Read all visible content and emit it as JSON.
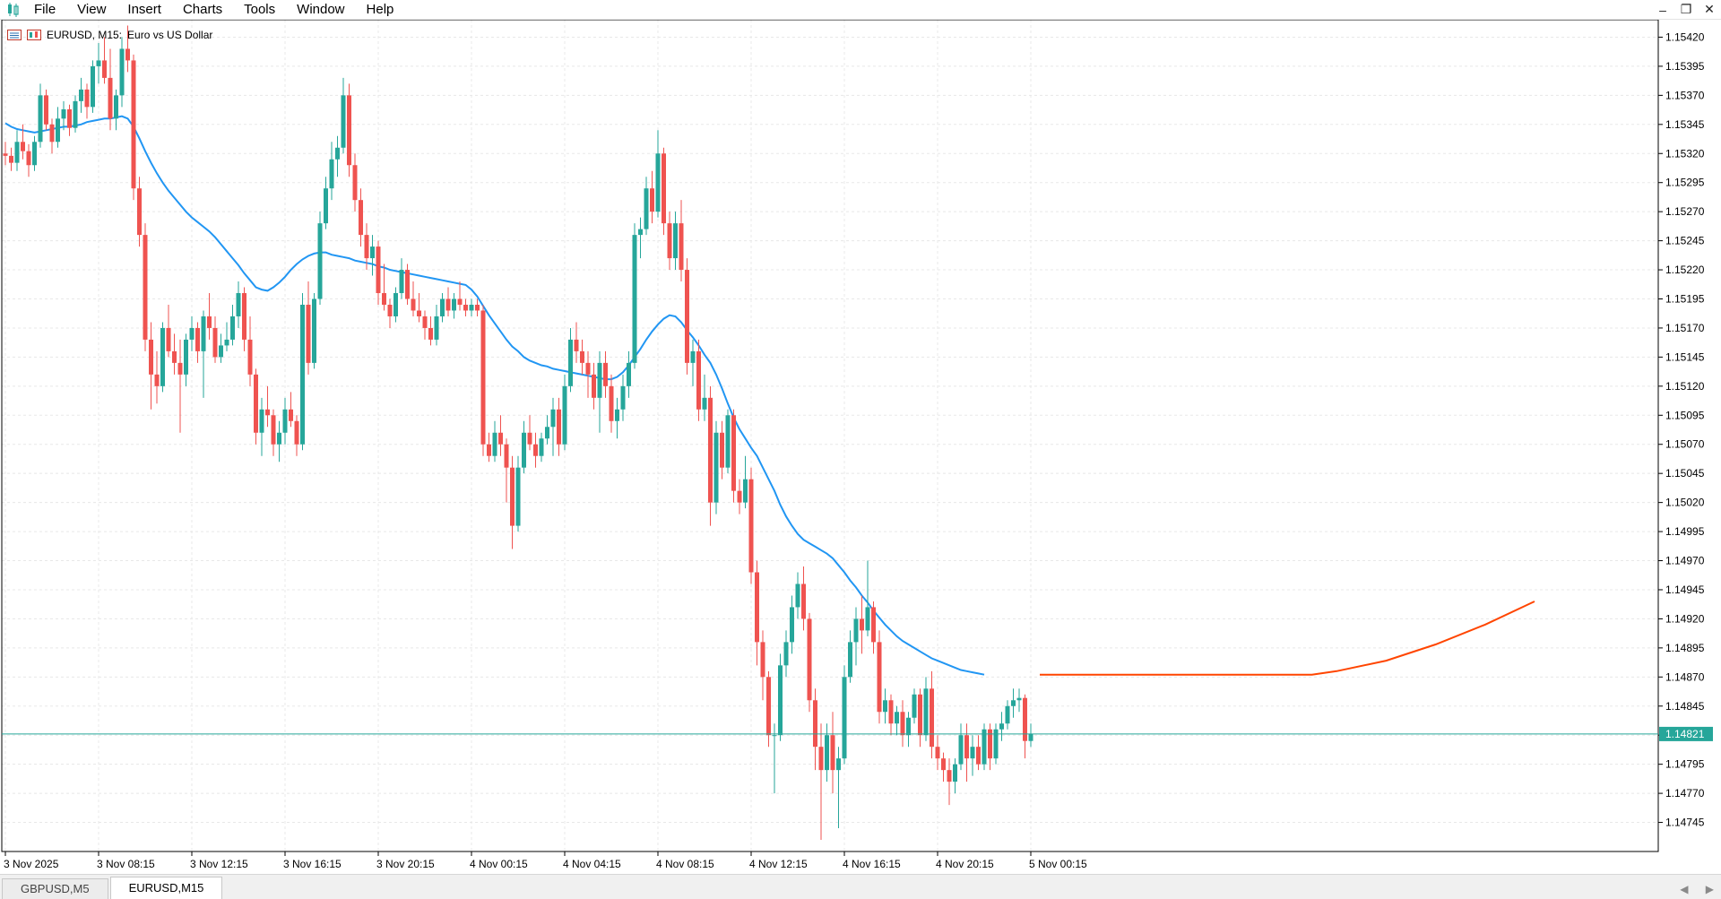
{
  "menu": [
    "File",
    "View",
    "Insert",
    "Charts",
    "Tools",
    "Window",
    "Help"
  ],
  "window_controls": [
    "minimize-icon",
    "restore-icon",
    "close-icon"
  ],
  "chart": {
    "symbol_label": "EURUSD, M15:",
    "description": "Euro vs US Dollar",
    "current_price_label": "1.14821"
  },
  "tabs": [
    {
      "label": "GBPUSD,M5",
      "active": false
    },
    {
      "label": "EURUSD,M15",
      "active": true
    }
  ],
  "colors": {
    "bull": "#26a69a",
    "bear": "#ef5350",
    "ma": "#2196f3",
    "forecast": "#ff4500",
    "price_line": "#26a69a",
    "grid": "#e8e8e8"
  },
  "chart_data": {
    "type": "candlestick",
    "symbol": "EURUSD",
    "timeframe": "M15",
    "ylim": [
      1.1472,
      1.15435
    ],
    "y_ticks": [
      "1.15420",
      "1.15395",
      "1.15370",
      "1.15345",
      "1.15320",
      "1.15295",
      "1.15270",
      "1.15245",
      "1.15220",
      "1.15195",
      "1.15170",
      "1.15145",
      "1.15120",
      "1.15095",
      "1.15070",
      "1.15045",
      "1.15020",
      "1.14995",
      "1.14970",
      "1.14945",
      "1.14920",
      "1.14895",
      "1.14870",
      "1.14845",
      "1.14820",
      "1.14795",
      "1.14770",
      "1.14745"
    ],
    "x_ticks": [
      "3 Nov 2025",
      "3 Nov 08:15",
      "3 Nov 12:15",
      "3 Nov 16:15",
      "3 Nov 20:15",
      "4 Nov 00:15",
      "4 Nov 04:15",
      "4 Nov 08:15",
      "4 Nov 12:15",
      "4 Nov 16:15",
      "4 Nov 20:15",
      "5 Nov 00:15"
    ],
    "current_price": 1.14821,
    "candles": [
      [
        1.1532,
        1.1533,
        1.1531,
        1.15318
      ],
      [
        1.15318,
        1.15325,
        1.15305,
        1.15312
      ],
      [
        1.15312,
        1.1534,
        1.15305,
        1.1533
      ],
      [
        1.1533,
        1.15345,
        1.15315,
        1.15322
      ],
      [
        1.15322,
        1.15328,
        1.153,
        1.1531
      ],
      [
        1.1531,
        1.15335,
        1.15305,
        1.1533
      ],
      [
        1.1533,
        1.1538,
        1.15325,
        1.1537
      ],
      [
        1.1537,
        1.15375,
        1.1534,
        1.15345
      ],
      [
        1.15345,
        1.1535,
        1.1532,
        1.1533
      ],
      [
        1.1533,
        1.1536,
        1.15325,
        1.1535
      ],
      [
        1.1535,
        1.15365,
        1.1534,
        1.15358
      ],
      [
        1.15358,
        1.15362,
        1.15335,
        1.15342
      ],
      [
        1.15342,
        1.1537,
        1.15338,
        1.15365
      ],
      [
        1.15365,
        1.15385,
        1.15355,
        1.15375
      ],
      [
        1.15375,
        1.1538,
        1.1535,
        1.1536
      ],
      [
        1.1536,
        1.154,
        1.15355,
        1.15395
      ],
      [
        1.15395,
        1.15415,
        1.1538,
        1.154
      ],
      [
        1.154,
        1.1542,
        1.1538,
        1.15385
      ],
      [
        1.15385,
        1.1541,
        1.1534,
        1.1535
      ],
      [
        1.1535,
        1.15375,
        1.1534,
        1.1537
      ],
      [
        1.1537,
        1.1542,
        1.1536,
        1.1541
      ],
      [
        1.1541,
        1.1543,
        1.1539,
        1.154
      ],
      [
        1.154,
        1.15405,
        1.1528,
        1.1529
      ],
      [
        1.1529,
        1.153,
        1.1524,
        1.1525
      ],
      [
        1.1525,
        1.1526,
        1.1515,
        1.1516
      ],
      [
        1.1516,
        1.15175,
        1.151,
        1.1513
      ],
      [
        1.1513,
        1.1515,
        1.15105,
        1.1512
      ],
      [
        1.1512,
        1.15175,
        1.15115,
        1.1517
      ],
      [
        1.1517,
        1.1519,
        1.15145,
        1.1515
      ],
      [
        1.1515,
        1.15165,
        1.1513,
        1.1514
      ],
      [
        1.1514,
        1.1516,
        1.1508,
        1.1513
      ],
      [
        1.1513,
        1.15165,
        1.1512,
        1.1516
      ],
      [
        1.1516,
        1.1518,
        1.1515,
        1.1517
      ],
      [
        1.1517,
        1.15175,
        1.1514,
        1.1515
      ],
      [
        1.1515,
        1.15185,
        1.1511,
        1.1518
      ],
      [
        1.1518,
        1.152,
        1.1516,
        1.1517
      ],
      [
        1.1517,
        1.1518,
        1.1514,
        1.15145
      ],
      [
        1.15145,
        1.15165,
        1.1514,
        1.15155
      ],
      [
        1.15155,
        1.15175,
        1.1515,
        1.1516
      ],
      [
        1.1516,
        1.1519,
        1.15155,
        1.1518
      ],
      [
        1.1518,
        1.1521,
        1.1517,
        1.152
      ],
      [
        1.152,
        1.15205,
        1.1515,
        1.1516
      ],
      [
        1.1516,
        1.1518,
        1.1512,
        1.1513
      ],
      [
        1.1513,
        1.15135,
        1.1507,
        1.1508
      ],
      [
        1.1508,
        1.1511,
        1.1506,
        1.151
      ],
      [
        1.151,
        1.1512,
        1.15085,
        1.15095
      ],
      [
        1.15095,
        1.151,
        1.1506,
        1.1507
      ],
      [
        1.1507,
        1.1509,
        1.15055,
        1.1508
      ],
      [
        1.1508,
        1.1511,
        1.1507,
        1.151
      ],
      [
        1.151,
        1.15115,
        1.15085,
        1.1509
      ],
      [
        1.1509,
        1.15095,
        1.1506,
        1.1507
      ],
      [
        1.1507,
        1.152,
        1.15065,
        1.1519
      ],
      [
        1.1519,
        1.1521,
        1.1513,
        1.1514
      ],
      [
        1.1514,
        1.152,
        1.15135,
        1.15195
      ],
      [
        1.15195,
        1.1527,
        1.1519,
        1.1526
      ],
      [
        1.1526,
        1.153,
        1.15255,
        1.1529
      ],
      [
        1.1529,
        1.1533,
        1.1528,
        1.15315
      ],
      [
        1.15315,
        1.15335,
        1.153,
        1.15325
      ],
      [
        1.15325,
        1.15385,
        1.1532,
        1.1537
      ],
      [
        1.1537,
        1.1538,
        1.153,
        1.1531
      ],
      [
        1.1531,
        1.1532,
        1.1527,
        1.1528
      ],
      [
        1.1528,
        1.1529,
        1.1524,
        1.1525
      ],
      [
        1.1525,
        1.1526,
        1.1522,
        1.1523
      ],
      [
        1.1523,
        1.1525,
        1.15215,
        1.1524
      ],
      [
        1.1524,
        1.15245,
        1.1519,
        1.152
      ],
      [
        1.152,
        1.15225,
        1.15185,
        1.1519
      ],
      [
        1.1519,
        1.15195,
        1.1517,
        1.1518
      ],
      [
        1.1518,
        1.15205,
        1.15175,
        1.152
      ],
      [
        1.152,
        1.1523,
        1.15195,
        1.1522
      ],
      [
        1.1522,
        1.15225,
        1.1519,
        1.15195
      ],
      [
        1.15195,
        1.1521,
        1.1518,
        1.15185
      ],
      [
        1.15185,
        1.152,
        1.15175,
        1.1518
      ],
      [
        1.1518,
        1.15185,
        1.1516,
        1.1517
      ],
      [
        1.1517,
        1.1518,
        1.15155,
        1.1516
      ],
      [
        1.1516,
        1.1519,
        1.15155,
        1.1518
      ],
      [
        1.1518,
        1.152,
        1.15175,
        1.15195
      ],
      [
        1.15195,
        1.15205,
        1.1518,
        1.15185
      ],
      [
        1.15185,
        1.152,
        1.15178,
        1.15195
      ],
      [
        1.15195,
        1.1521,
        1.15185,
        1.1519
      ],
      [
        1.1519,
        1.15195,
        1.1518,
        1.15185
      ],
      [
        1.15185,
        1.15195,
        1.1518,
        1.1519
      ],
      [
        1.1519,
        1.15195,
        1.1518,
        1.15185
      ],
      [
        1.15185,
        1.1519,
        1.1506,
        1.1507
      ],
      [
        1.1507,
        1.1508,
        1.15055,
        1.1506
      ],
      [
        1.1506,
        1.1509,
        1.15055,
        1.1508
      ],
      [
        1.1508,
        1.15095,
        1.1506,
        1.1507
      ],
      [
        1.1507,
        1.15075,
        1.1502,
        1.1505
      ],
      [
        1.1505,
        1.1506,
        1.1498,
        1.15
      ],
      [
        1.15,
        1.1506,
        1.14995,
        1.1505
      ],
      [
        1.1505,
        1.1509,
        1.15045,
        1.1508
      ],
      [
        1.1508,
        1.15095,
        1.15065,
        1.1507
      ],
      [
        1.1507,
        1.1508,
        1.1505,
        1.1506
      ],
      [
        1.1506,
        1.1508,
        1.15055,
        1.15075
      ],
      [
        1.15075,
        1.15095,
        1.1507,
        1.15085
      ],
      [
        1.15085,
        1.1511,
        1.1506,
        1.151
      ],
      [
        1.151,
        1.1511,
        1.1506,
        1.1507
      ],
      [
        1.1507,
        1.1513,
        1.15065,
        1.1512
      ],
      [
        1.1512,
        1.1517,
        1.15115,
        1.1516
      ],
      [
        1.1516,
        1.15175,
        1.1514,
        1.1515
      ],
      [
        1.1515,
        1.1516,
        1.1513,
        1.1514
      ],
      [
        1.1514,
        1.1515,
        1.1511,
        1.1513
      ],
      [
        1.1513,
        1.1514,
        1.151,
        1.1511
      ],
      [
        1.1511,
        1.1515,
        1.1508,
        1.1514
      ],
      [
        1.1514,
        1.1515,
        1.1511,
        1.1512
      ],
      [
        1.1512,
        1.1513,
        1.1508,
        1.1509
      ],
      [
        1.1509,
        1.1511,
        1.15075,
        1.151
      ],
      [
        1.151,
        1.1513,
        1.1509,
        1.1512
      ],
      [
        1.1512,
        1.1515,
        1.1511,
        1.1514
      ],
      [
        1.1514,
        1.1526,
        1.15135,
        1.1525
      ],
      [
        1.1525,
        1.15265,
        1.1523,
        1.15255
      ],
      [
        1.15255,
        1.153,
        1.1525,
        1.1529
      ],
      [
        1.1529,
        1.15305,
        1.1526,
        1.1527
      ],
      [
        1.1527,
        1.1534,
        1.15265,
        1.1532
      ],
      [
        1.1532,
        1.15325,
        1.1525,
        1.1526
      ],
      [
        1.1526,
        1.1527,
        1.1522,
        1.1523
      ],
      [
        1.1523,
        1.1527,
        1.1522,
        1.1526
      ],
      [
        1.1526,
        1.1528,
        1.1521,
        1.1522
      ],
      [
        1.1522,
        1.1523,
        1.1513,
        1.1514
      ],
      [
        1.1514,
        1.1516,
        1.1512,
        1.1515
      ],
      [
        1.1515,
        1.1516,
        1.1509,
        1.151
      ],
      [
        1.151,
        1.1513,
        1.1509,
        1.1511
      ],
      [
        1.1511,
        1.1512,
        1.15,
        1.1502
      ],
      [
        1.1502,
        1.1509,
        1.1501,
        1.1508
      ],
      [
        1.1508,
        1.1509,
        1.1504,
        1.1505
      ],
      [
        1.1505,
        1.151,
        1.15045,
        1.15095
      ],
      [
        1.15095,
        1.151,
        1.1502,
        1.1503
      ],
      [
        1.1503,
        1.1504,
        1.1501,
        1.1502
      ],
      [
        1.1502,
        1.1506,
        1.15015,
        1.1504
      ],
      [
        1.1504,
        1.1505,
        1.1495,
        1.1496
      ],
      [
        1.1496,
        1.1497,
        1.1488,
        1.149
      ],
      [
        1.149,
        1.1491,
        1.1485,
        1.1487
      ],
      [
        1.1487,
        1.14875,
        1.1481,
        1.1482
      ],
      [
        1.1482,
        1.1483,
        1.1477,
        1.1482
      ],
      [
        1.1482,
        1.1489,
        1.14815,
        1.1488
      ],
      [
        1.1488,
        1.1491,
        1.1487,
        1.149
      ],
      [
        1.149,
        1.1494,
        1.1489,
        1.1493
      ],
      [
        1.1493,
        1.1496,
        1.1492,
        1.1495
      ],
      [
        1.1495,
        1.14965,
        1.1491,
        1.1492
      ],
      [
        1.1492,
        1.14925,
        1.1484,
        1.1485
      ],
      [
        1.1485,
        1.1486,
        1.1479,
        1.1481
      ],
      [
        1.1481,
        1.1483,
        1.1473,
        1.1479
      ],
      [
        1.1479,
        1.1483,
        1.1478,
        1.1482
      ],
      [
        1.1482,
        1.1484,
        1.1477,
        1.1479
      ],
      [
        1.1479,
        1.1481,
        1.1474,
        1.148
      ],
      [
        1.148,
        1.1488,
        1.14795,
        1.1487
      ],
      [
        1.1487,
        1.1491,
        1.14865,
        1.149
      ],
      [
        1.149,
        1.1493,
        1.1488,
        1.1492
      ],
      [
        1.1492,
        1.1494,
        1.1489,
        1.1491
      ],
      [
        1.1491,
        1.1497,
        1.14905,
        1.1493
      ],
      [
        1.1493,
        1.14935,
        1.1489,
        1.149
      ],
      [
        1.149,
        1.1491,
        1.1483,
        1.1484
      ],
      [
        1.1484,
        1.1486,
        1.1483,
        1.1485
      ],
      [
        1.1485,
        1.14855,
        1.1482,
        1.1483
      ],
      [
        1.1483,
        1.14845,
        1.1482,
        1.1484
      ],
      [
        1.1484,
        1.1485,
        1.1481,
        1.1482
      ],
      [
        1.1482,
        1.1484,
        1.1481,
        1.14835
      ],
      [
        1.14835,
        1.1486,
        1.1483,
        1.14855
      ],
      [
        1.14855,
        1.1486,
        1.1481,
        1.1482
      ],
      [
        1.1482,
        1.1487,
        1.14815,
        1.1486
      ],
      [
        1.1486,
        1.14875,
        1.148,
        1.1481
      ],
      [
        1.1481,
        1.1482,
        1.1479,
        1.148
      ],
      [
        1.148,
        1.14805,
        1.1478,
        1.1479
      ],
      [
        1.1479,
        1.148,
        1.1476,
        1.1478
      ],
      [
        1.1478,
        1.148,
        1.1477,
        1.14795
      ],
      [
        1.14795,
        1.1483,
        1.1479,
        1.1482
      ],
      [
        1.1482,
        1.1483,
        1.1478,
        1.148
      ],
      [
        1.148,
        1.1482,
        1.14785,
        1.1481
      ],
      [
        1.1481,
        1.1482,
        1.1479,
        1.14795
      ],
      [
        1.14795,
        1.1483,
        1.1479,
        1.14825
      ],
      [
        1.14825,
        1.1483,
        1.1479,
        1.148
      ],
      [
        1.148,
        1.1483,
        1.14795,
        1.14825
      ],
      [
        1.14825,
        1.1484,
        1.14815,
        1.1483
      ],
      [
        1.1483,
        1.1485,
        1.14825,
        1.14845
      ],
      [
        1.14845,
        1.1486,
        1.14835,
        1.1485
      ],
      [
        1.1485,
        1.1486,
        1.1484,
        1.14852
      ],
      [
        1.14852,
        1.14855,
        1.148,
        1.14815
      ],
      [
        1.14815,
        1.1483,
        1.1481,
        1.14821
      ]
    ],
    "moving_average": [
      1.15346,
      1.15343,
      1.15341,
      1.1534,
      1.15339,
      1.15338,
      1.15339,
      1.1534,
      1.15341,
      1.15342,
      1.15343,
      1.15343,
      1.15344,
      1.15345,
      1.15347,
      1.15348,
      1.15349,
      1.1535,
      1.1535,
      1.15351,
      1.15352,
      1.1535,
      1.15343,
      1.15333,
      1.15322,
      1.15312,
      1.15303,
      1.15295,
      1.15288,
      1.15282,
      1.15276,
      1.1527,
      1.15265,
      1.15261,
      1.15257,
      1.15253,
      1.15248,
      1.15242,
      1.15236,
      1.1523,
      1.15224,
      1.15217,
      1.15211,
      1.15205,
      1.15203,
      1.15202,
      1.15205,
      1.15209,
      1.15214,
      1.1522,
      1.15225,
      1.15229,
      1.15232,
      1.15234,
      1.15235,
      1.15235,
      1.15233,
      1.15232,
      1.15231,
      1.1523,
      1.15228,
      1.15227,
      1.15226,
      1.15225,
      1.15223,
      1.15222,
      1.1522,
      1.15219,
      1.15218,
      1.15217,
      1.15216,
      1.15215,
      1.15214,
      1.15213,
      1.15212,
      1.15211,
      1.1521,
      1.15209,
      1.15208,
      1.15207,
      1.15203,
      1.15197,
      1.15189,
      1.15181,
      1.15174,
      1.15167,
      1.1516,
      1.15154,
      1.1515,
      1.15145,
      1.15142,
      1.1514,
      1.15138,
      1.15137,
      1.15135,
      1.15134,
      1.15133,
      1.15132,
      1.15131,
      1.1513,
      1.15129,
      1.15128,
      1.15127,
      1.15126,
      1.15126,
      1.15128,
      1.15132,
      1.15138,
      1.15145,
      1.15152,
      1.1516,
      1.15167,
      1.15173,
      1.15178,
      1.15181,
      1.1518,
      1.15175,
      1.15168,
      1.15162,
      1.15155,
      1.15147,
      1.1514,
      1.1513,
      1.15118,
      1.15105,
      1.15093,
      1.15083,
      1.15075,
      1.15067,
      1.1506,
      1.1505,
      1.1504,
      1.1503,
      1.15018,
      1.15008,
      1.15,
      1.14993,
      1.14988,
      1.14985,
      1.14982,
      1.14979,
      1.14976,
      1.14972,
      1.14966,
      1.1496,
      1.14953,
      1.14947,
      1.1494,
      1.14934,
      1.14927,
      1.14921,
      1.14915,
      1.1491,
      1.14905,
      1.14901,
      1.14898,
      1.14895,
      1.14892,
      1.14889,
      1.14886,
      1.14884,
      1.14882,
      1.1488,
      1.14878,
      1.14876,
      1.14875,
      1.14874,
      1.14873,
      1.14872
    ],
    "forecast": [
      [
        0,
        1.14872
      ],
      [
        0.25,
        1.14872
      ],
      [
        0.45,
        1.14872
      ],
      [
        0.55,
        1.14872
      ],
      [
        0.6,
        1.14875
      ],
      [
        0.7,
        1.14884
      ],
      [
        0.8,
        1.14898
      ],
      [
        0.9,
        1.14915
      ],
      [
        1.0,
        1.14935
      ]
    ]
  }
}
